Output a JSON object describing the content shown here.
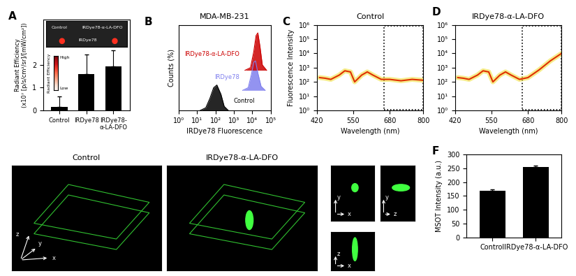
{
  "chart_data": [
    {
      "panel": "A",
      "type": "bar",
      "categories": [
        "Control",
        "IRDye78",
        "IRDye78-\nα-LA-DFO"
      ],
      "values": [
        0.15,
        1.6,
        1.93
      ],
      "errors": [
        0.45,
        0.85,
        0.72
      ],
      "color": "#000000",
      "ylabel": "Radiant Efficiency\n(x10⁷ [p/s/cm²/sr]/[mW/cm²])",
      "ylim": [
        0,
        4
      ],
      "yticks": [
        0,
        1,
        2
      ],
      "inset": {
        "labels": [
          "Control",
          "IRDye78-α-LA-DFO",
          "IRDye78"
        ],
        "colorbar": {
          "high": "High",
          "title": "Radiant Efficiency",
          "low": "Low"
        }
      }
    },
    {
      "panel": "B",
      "type": "line",
      "title": "MDA-MB-231",
      "xlabel": "IRDye78 Fluorescence",
      "ylabel": "Counts (%)",
      "log": "x",
      "tick_labels": "x",
      "xlim": [
        1,
        100000
      ],
      "xticks": [
        {
          "value": 1,
          "label": "10⁰"
        },
        {
          "value": 10,
          "label": "10¹"
        },
        {
          "value": 100,
          "label": "10²"
        },
        {
          "value": 1000,
          "label": "10³"
        },
        {
          "value": 10000,
          "label": "10⁴"
        },
        {
          "value": 100000,
          "label": "10⁵"
        }
      ],
      "ylim": [
        0,
        3.2
      ],
      "series": [
        {
          "name": "Control",
          "color": "#000000",
          "x": [
            15,
            30,
            50,
            80,
            120,
            200,
            300,
            500
          ],
          "values": [
            0,
            0.1,
            0.45,
            0.85,
            0.95,
            0.6,
            0.15,
            0
          ]
        },
        {
          "name": "IRDye78",
          "color": "#8080ee",
          "x": [
            3000,
            6000,
            9000,
            12000,
            15000,
            20000,
            30000,
            50000
          ],
          "values": [
            0.75,
            0.85,
            1.35,
            1.8,
            1.85,
            1.4,
            0.9,
            0.75
          ]
        },
        {
          "name": "IRDye78-α-LA-DFO",
          "color": "#cc0000",
          "x": [
            4000,
            8000,
            12000,
            16000,
            20000,
            26000,
            35000,
            60000
          ],
          "values": [
            1.5,
            1.6,
            2.2,
            2.8,
            2.9,
            2.4,
            1.7,
            1.5
          ]
        }
      ]
    },
    {
      "panel": "C",
      "type": "line",
      "title": "Control",
      "log": "y",
      "xlabel": "Wavelength (nm)",
      "ylabel": "Fluorescence Intensity",
      "xlim": [
        420,
        800
      ],
      "xticks": [
        420,
        550,
        680,
        800
      ],
      "ylim": [
        1,
        1000000
      ],
      "yticks": [
        {
          "value": 1,
          "label": "10⁰"
        },
        {
          "value": 10,
          "label": "10¹"
        },
        {
          "value": 100,
          "label": "10²"
        },
        {
          "value": 1000,
          "label": "10³"
        },
        {
          "value": 10000,
          "label": "10⁴"
        },
        {
          "value": 100000,
          "label": "10⁵"
        },
        {
          "value": 1000000,
          "label": "10⁶"
        }
      ],
      "highlight_x": [
        660,
        800
      ],
      "x": [
        430,
        450,
        470,
        500,
        520,
        540,
        555,
        580,
        600,
        620,
        650,
        680,
        720,
        760,
        800
      ],
      "values": [
        200,
        180,
        150,
        300,
        600,
        500,
        100,
        300,
        500,
        300,
        150,
        150,
        120,
        150,
        130
      ],
      "color": "#e03000"
    },
    {
      "panel": "D",
      "type": "line",
      "title": "IRDye78-α-LA-DFO",
      "log": "y",
      "xlabel": "Wavelength (nm)",
      "xlim": [
        420,
        800
      ],
      "xticks": [
        420,
        550,
        680,
        800
      ],
      "ylim": [
        1,
        1000000
      ],
      "yticks": [
        {
          "value": 1,
          "label": "10⁰"
        },
        {
          "value": 10,
          "label": "10¹"
        },
        {
          "value": 100,
          "label": "10²"
        },
        {
          "value": 1000,
          "label": "10³"
        },
        {
          "value": 10000,
          "label": "10⁴"
        },
        {
          "value": 100000,
          "label": "10⁵"
        },
        {
          "value": 1000000,
          "label": "10⁶"
        }
      ],
      "highlight_x": [
        660,
        800
      ],
      "x": [
        430,
        450,
        470,
        500,
        520,
        540,
        555,
        580,
        600,
        620,
        650,
        680,
        720,
        760,
        800
      ],
      "values": [
        200,
        180,
        150,
        300,
        600,
        500,
        100,
        300,
        500,
        300,
        150,
        200,
        700,
        3000,
        10000
      ],
      "color": "#e03000"
    },
    {
      "panel": "E",
      "type": "image",
      "titles": [
        "Control",
        "IRDye78-α-LA-DFO"
      ],
      "triad": {
        "up": "z",
        "diagonal": "y",
        "right": "x"
      },
      "views": [
        {
          "right": "x",
          "up": "y"
        },
        {
          "right": "z",
          "up": "y"
        },
        {
          "right": "x",
          "up": "z"
        }
      ]
    },
    {
      "panel": "F",
      "type": "bar",
      "categories": [
        "Control",
        "IRDye78-α-LA-DFO"
      ],
      "values": [
        168,
        256
      ],
      "errors": [
        7,
        5
      ],
      "color": "#000000",
      "ylabel": "MSOT Intensity (a.u.)",
      "ylim": [
        0,
        300
      ],
      "yticks": [
        0,
        50,
        100,
        150,
        200,
        250,
        300
      ]
    }
  ]
}
